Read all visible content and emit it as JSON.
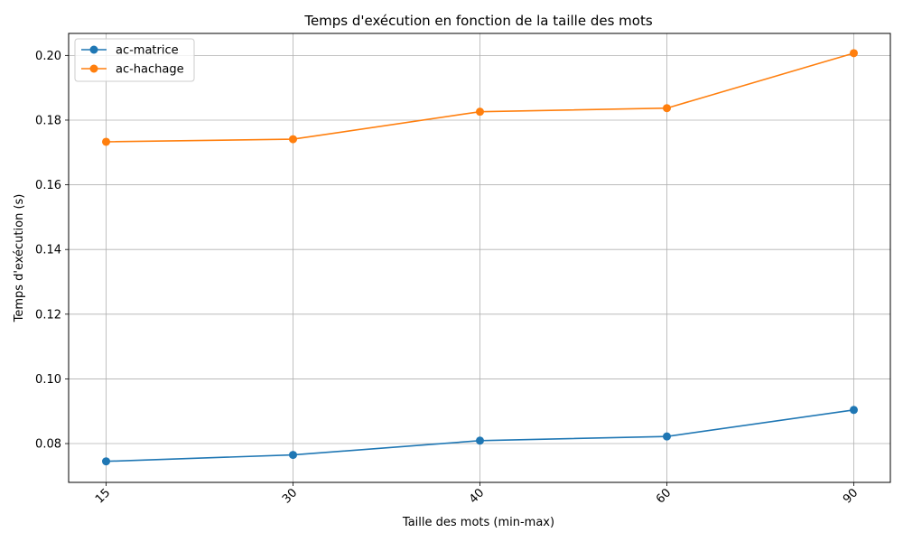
{
  "chart_data": {
    "type": "line",
    "title": "Temps d'exécution en fonction de la taille des mots",
    "xlabel": "Taille des mots (min-max)",
    "ylabel": "Temps d'exécution (s)",
    "categories": [
      "15",
      "30",
      "40",
      "60",
      "90"
    ],
    "yticks": [
      "0.08",
      "0.10",
      "0.12",
      "0.14",
      "0.16",
      "0.18",
      "0.20"
    ],
    "ylim": [
      0.068,
      0.2068
    ],
    "grid": true,
    "legend_position": "upper-left",
    "series": [
      {
        "name": "ac-matrice",
        "color": "#1f77b4",
        "values": [
          0.0745,
          0.0765,
          0.0809,
          0.0822,
          0.0904
        ]
      },
      {
        "name": "ac-hachage",
        "color": "#ff7f0e",
        "values": [
          0.1733,
          0.1741,
          0.1826,
          0.1837,
          0.2007
        ]
      }
    ]
  }
}
